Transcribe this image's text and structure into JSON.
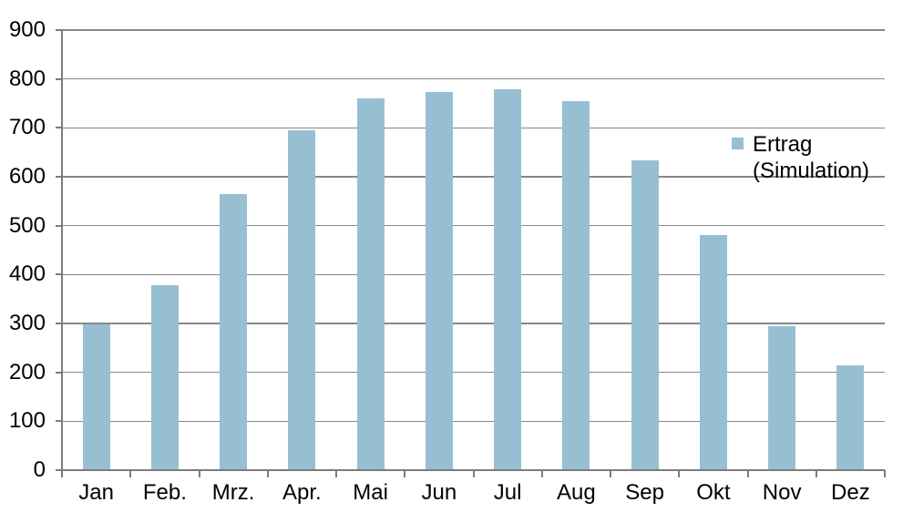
{
  "chart_data": {
    "type": "bar",
    "categories": [
      "Jan",
      "Feb.",
      "Mrz.",
      "Apr.",
      "Mai",
      "Jun",
      "Jul",
      "Aug",
      "Sep",
      "Okt",
      "Nov",
      "Dez"
    ],
    "series": [
      {
        "name": "Ertrag (Simulation)",
        "values": [
          298,
          378,
          565,
          695,
          760,
          773,
          779,
          755,
          634,
          480,
          294,
          214
        ]
      }
    ],
    "title": "",
    "xlabel": "",
    "ylabel": "",
    "ylim": [
      0,
      900
    ],
    "yticks": [
      0,
      100,
      200,
      300,
      400,
      500,
      600,
      700,
      800,
      900
    ],
    "grid": true,
    "legend_position": "inside-right",
    "bar_color": "#97bfd2"
  },
  "legend": {
    "line1": "Ertrag",
    "line2": "(Simulation)"
  },
  "colors": {
    "bar": "#97bfd2",
    "gridline": "#878787",
    "axis": "#7c7c7c",
    "text": "#000000",
    "background": "#ffffff"
  }
}
